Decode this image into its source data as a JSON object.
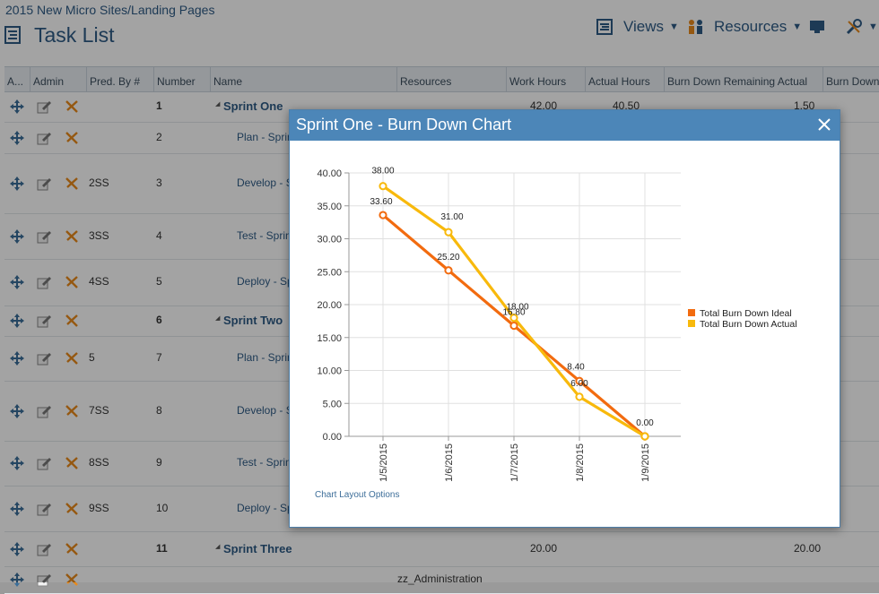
{
  "breadcrumb": "2015 New Micro Sites/Landing Pages",
  "page_title": "Task List",
  "toolbar": {
    "views": "Views",
    "resources": "Resources"
  },
  "columns": [
    "A...",
    "Admin",
    "Pred. By #",
    "Number",
    "Name",
    "Resources",
    "Work Hours",
    "Actual Hours",
    "Burn Down Remaining Actual",
    "Burn Down"
  ],
  "rows": [
    {
      "pred": "",
      "num": "1",
      "name": "Sprint One",
      "type": "sprint",
      "res": "",
      "work": "42.00",
      "actual": "40.50",
      "bd": "1.50"
    },
    {
      "pred": "",
      "num": "2",
      "name": "Plan - Sprint One",
      "type": "task",
      "res": "",
      "work": "",
      "actual": "",
      "bd": ""
    },
    {
      "pred": "2SS",
      "num": "3",
      "name": "Develop - Sprint One",
      "type": "task",
      "res": "",
      "work": "",
      "actual": "",
      "bd": ""
    },
    {
      "pred": "3SS",
      "num": "4",
      "name": "Test - Sprint One",
      "type": "task",
      "res": "",
      "work": "",
      "actual": "",
      "bd": ""
    },
    {
      "pred": "4SS",
      "num": "5",
      "name": "Deploy - Sprint One",
      "type": "task",
      "res": "",
      "work": "",
      "actual": "",
      "bd": ""
    },
    {
      "pred": "",
      "num": "6",
      "name": "Sprint Two",
      "type": "sprint",
      "res": "",
      "work": "",
      "actual": "",
      "bd": ""
    },
    {
      "pred": "5",
      "num": "7",
      "name": "Plan - Sprint Two",
      "type": "task",
      "res": "",
      "work": "",
      "actual": "",
      "bd": ""
    },
    {
      "pred": "7SS",
      "num": "8",
      "name": "Develop - Sprint Two",
      "type": "task",
      "res": "",
      "work": "",
      "actual": "",
      "bd": ""
    },
    {
      "pred": "8SS",
      "num": "9",
      "name": "Test - Sprint Two",
      "type": "task",
      "res": "",
      "work": "",
      "actual": "",
      "bd": ""
    },
    {
      "pred": "9SS",
      "num": "10",
      "name": "Deploy - Sprint Two",
      "type": "task",
      "res": "",
      "work": "",
      "actual": "",
      "bd": ""
    },
    {
      "pred": "",
      "num": "11",
      "name": "Sprint Three",
      "type": "sprint",
      "res": "",
      "work": "20.00",
      "actual": "",
      "bd": "20.00"
    },
    {
      "pred": "",
      "num": "",
      "name": "",
      "type": "task",
      "res": "zz_Administration",
      "work": "",
      "actual": "",
      "bd": ""
    }
  ],
  "modal": {
    "title": "Sprint One - Burn Down Chart",
    "chart_link": "Chart Layout Options"
  },
  "chart_data": {
    "type": "line",
    "x": [
      "1/5/2015",
      "1/6/2015",
      "1/7/2015",
      "1/8/2015",
      "1/9/2015"
    ],
    "ylim": [
      0,
      40
    ],
    "yticks": [
      "0.00",
      "5.00",
      "10.00",
      "15.00",
      "20.00",
      "25.00",
      "30.00",
      "35.00",
      "40.00"
    ],
    "grid": true,
    "legend": "right",
    "series": [
      {
        "name": "Total Burn Down Ideal",
        "values": [
          33.6,
          25.2,
          16.8,
          8.4,
          0
        ],
        "labels": [
          "33.60",
          "25.20",
          "16.80",
          "8.40",
          "0.00"
        ],
        "color": "#f26b0f"
      },
      {
        "name": "Total Burn Down Actual",
        "values": [
          38,
          31,
          18,
          6,
          0
        ],
        "labels": [
          "38.00",
          "31.00",
          "18.00",
          "6.00",
          "0.00"
        ],
        "color": "#f8b90c"
      }
    ]
  }
}
